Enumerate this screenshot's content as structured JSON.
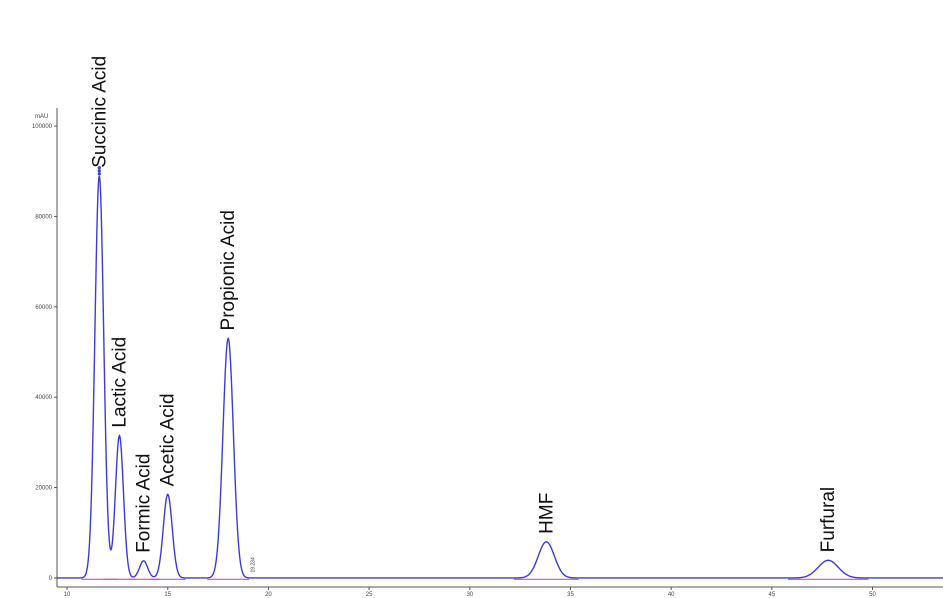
{
  "chart_data": {
    "type": "line",
    "ylabel": "mAU",
    "xlim": [
      9.5,
      53.5
    ],
    "ylim": [
      -2000,
      104000
    ],
    "yticks": [
      0,
      20000,
      40000,
      60000,
      80000,
      100000
    ],
    "xticks": [
      10,
      15,
      20,
      25,
      30,
      35,
      40,
      45,
      50
    ],
    "grid": false,
    "series_color": "#3b3bd6",
    "baseline_color": "#e040e0",
    "peaks": [
      {
        "name": "Succinic Acid",
        "x": 11.6,
        "y": 89000,
        "width": 0.22
      },
      {
        "name": "Lactic Acid",
        "x": 12.6,
        "y": 31500,
        "width": 0.2
      },
      {
        "name": "Formic Acid",
        "x": 13.8,
        "y": 3800,
        "width": 0.2
      },
      {
        "name": "Acetic Acid",
        "x": 15.0,
        "y": 18500,
        "width": 0.22
      },
      {
        "name": "Propionic Acid",
        "x": 18.0,
        "y": 53000,
        "width": 0.26
      },
      {
        "name": "HMF",
        "x": 33.8,
        "y": 8000,
        "width": 0.4
      },
      {
        "name": "Furfural",
        "x": 47.8,
        "y": 3900,
        "width": 0.5
      }
    ],
    "annotations": [
      {
        "text": "19.234",
        "x": 19.3,
        "y": 1200
      }
    ]
  }
}
